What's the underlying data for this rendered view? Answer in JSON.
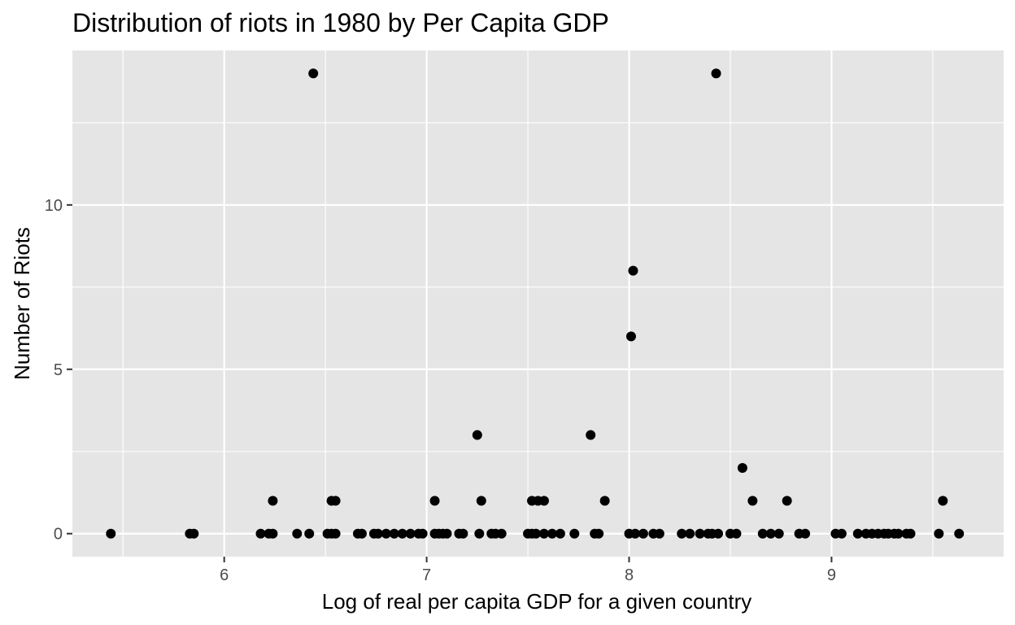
{
  "chart_data": {
    "type": "scatter",
    "title": "Distribution of riots in 1980 by Per Capita GDP",
    "xlabel": "Log of real per capita GDP for a given country",
    "ylabel": "Number of Riots",
    "xlim": [
      5.25,
      9.85
    ],
    "ylim": [
      -0.7,
      14.7
    ],
    "x_ticks": [
      6,
      7,
      8,
      9
    ],
    "x_tick_labels": [
      "6",
      "7",
      "8",
      "9"
    ],
    "y_ticks": [
      0,
      5,
      10
    ],
    "y_tick_labels": [
      "0",
      "5",
      "10"
    ],
    "x_minor_ticks": [
      5.5,
      6.5,
      7.5,
      8.5,
      9.5
    ],
    "y_minor_ticks": [
      2.5,
      7.5,
      12.5
    ],
    "grid": true,
    "legend": "none",
    "colors": {
      "panel": "#e5e5e5",
      "grid": "#ffffff",
      "point": "#000000",
      "tick_label": "#4d4d4d"
    },
    "points": [
      {
        "x": 5.44,
        "y": 0
      },
      {
        "x": 5.83,
        "y": 0
      },
      {
        "x": 5.85,
        "y": 0
      },
      {
        "x": 6.18,
        "y": 0
      },
      {
        "x": 6.22,
        "y": 0
      },
      {
        "x": 6.24,
        "y": 0
      },
      {
        "x": 6.24,
        "y": 1
      },
      {
        "x": 6.36,
        "y": 0
      },
      {
        "x": 6.42,
        "y": 0
      },
      {
        "x": 6.44,
        "y": 14
      },
      {
        "x": 6.51,
        "y": 0
      },
      {
        "x": 6.53,
        "y": 0
      },
      {
        "x": 6.53,
        "y": 1
      },
      {
        "x": 6.55,
        "y": 1
      },
      {
        "x": 6.55,
        "y": 0
      },
      {
        "x": 6.66,
        "y": 0
      },
      {
        "x": 6.68,
        "y": 0
      },
      {
        "x": 6.74,
        "y": 0
      },
      {
        "x": 6.76,
        "y": 0
      },
      {
        "x": 6.8,
        "y": 0
      },
      {
        "x": 6.84,
        "y": 0
      },
      {
        "x": 6.88,
        "y": 0
      },
      {
        "x": 6.92,
        "y": 0
      },
      {
        "x": 6.96,
        "y": 0
      },
      {
        "x": 6.98,
        "y": 0
      },
      {
        "x": 7.04,
        "y": 0
      },
      {
        "x": 7.04,
        "y": 1
      },
      {
        "x": 7.06,
        "y": 0
      },
      {
        "x": 7.08,
        "y": 0
      },
      {
        "x": 7.1,
        "y": 0
      },
      {
        "x": 7.16,
        "y": 0
      },
      {
        "x": 7.18,
        "y": 0
      },
      {
        "x": 7.25,
        "y": 3
      },
      {
        "x": 7.26,
        "y": 0
      },
      {
        "x": 7.27,
        "y": 1
      },
      {
        "x": 7.32,
        "y": 0
      },
      {
        "x": 7.34,
        "y": 0
      },
      {
        "x": 7.37,
        "y": 0
      },
      {
        "x": 7.5,
        "y": 0
      },
      {
        "x": 7.52,
        "y": 0
      },
      {
        "x": 7.52,
        "y": 1
      },
      {
        "x": 7.54,
        "y": 0
      },
      {
        "x": 7.55,
        "y": 1
      },
      {
        "x": 7.58,
        "y": 0
      },
      {
        "x": 7.58,
        "y": 1
      },
      {
        "x": 7.62,
        "y": 0
      },
      {
        "x": 7.66,
        "y": 0
      },
      {
        "x": 7.73,
        "y": 0
      },
      {
        "x": 7.81,
        "y": 3
      },
      {
        "x": 7.83,
        "y": 0
      },
      {
        "x": 7.85,
        "y": 0
      },
      {
        "x": 7.88,
        "y": 1
      },
      {
        "x": 8.0,
        "y": 0
      },
      {
        "x": 8.01,
        "y": 6
      },
      {
        "x": 8.02,
        "y": 8
      },
      {
        "x": 8.03,
        "y": 0
      },
      {
        "x": 8.07,
        "y": 0
      },
      {
        "x": 8.12,
        "y": 0
      },
      {
        "x": 8.15,
        "y": 0
      },
      {
        "x": 8.26,
        "y": 0
      },
      {
        "x": 8.3,
        "y": 0
      },
      {
        "x": 8.35,
        "y": 0
      },
      {
        "x": 8.39,
        "y": 0
      },
      {
        "x": 8.41,
        "y": 0
      },
      {
        "x": 8.43,
        "y": 14
      },
      {
        "x": 8.44,
        "y": 0
      },
      {
        "x": 8.5,
        "y": 0
      },
      {
        "x": 8.53,
        "y": 0
      },
      {
        "x": 8.56,
        "y": 2
      },
      {
        "x": 8.61,
        "y": 1
      },
      {
        "x": 8.66,
        "y": 0
      },
      {
        "x": 8.7,
        "y": 0
      },
      {
        "x": 8.74,
        "y": 0
      },
      {
        "x": 8.78,
        "y": 1
      },
      {
        "x": 8.84,
        "y": 0
      },
      {
        "x": 8.87,
        "y": 0
      },
      {
        "x": 9.02,
        "y": 0
      },
      {
        "x": 9.05,
        "y": 0
      },
      {
        "x": 9.13,
        "y": 0
      },
      {
        "x": 9.17,
        "y": 0
      },
      {
        "x": 9.2,
        "y": 0
      },
      {
        "x": 9.23,
        "y": 0
      },
      {
        "x": 9.26,
        "y": 0
      },
      {
        "x": 9.28,
        "y": 0
      },
      {
        "x": 9.31,
        "y": 0
      },
      {
        "x": 9.33,
        "y": 0
      },
      {
        "x": 9.37,
        "y": 0
      },
      {
        "x": 9.39,
        "y": 0
      },
      {
        "x": 9.53,
        "y": 0
      },
      {
        "x": 9.55,
        "y": 1
      },
      {
        "x": 9.63,
        "y": 0
      }
    ]
  }
}
